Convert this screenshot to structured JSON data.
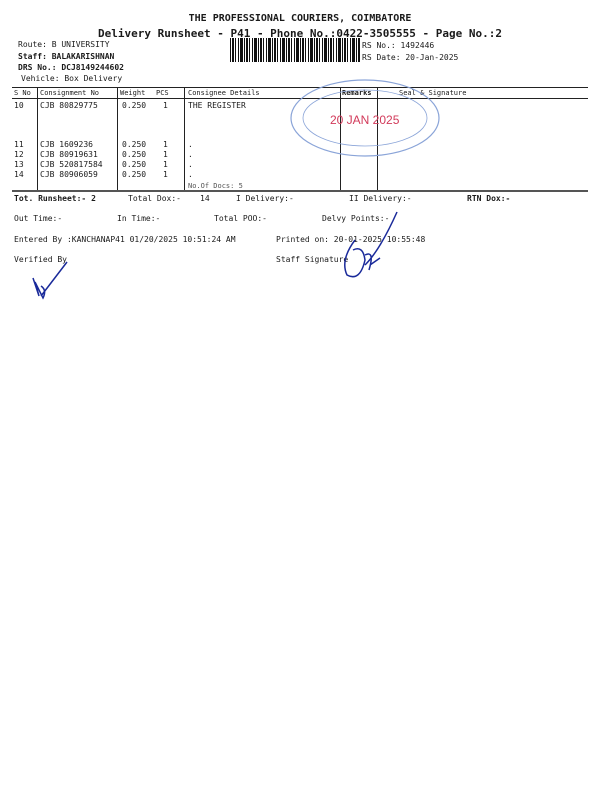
{
  "header": {
    "title": "THE PROFESSIONAL COURIERS, COIMBATORE",
    "subtitle": "Delivery Runsheet - P41 - Phone No.:0422-3505555 - Page No.:2",
    "route": "Route: B UNIVERSITY",
    "staff": "Staff: BALAKARISHNAN",
    "drs_no": "DRS No.: DCJ8149244602",
    "vehicle": "Vehicle: Box Delivery",
    "rs_no": "RS No.: 1492446",
    "rs_date": "RS Date: 20-Jan-2025"
  },
  "table": {
    "columns": [
      "S No",
      "Consignment No",
      "Weight",
      "PCS",
      "Consignee Details",
      "Remarks",
      "Seal & Signature"
    ],
    "rows": [
      {
        "sno": "10",
        "cons": "CJB 80829775",
        "weight": "0.250",
        "pcs": "1",
        "details": "THE REGISTER"
      },
      {
        "sno": "11",
        "cons": "CJB 1609236",
        "weight": "0.250",
        "pcs": "1",
        "details": "."
      },
      {
        "sno": "12",
        "cons": "CJB 80919631",
        "weight": "0.250",
        "pcs": "1",
        "details": "."
      },
      {
        "sno": "13",
        "cons": "CJB 520817584",
        "weight": "0.250",
        "pcs": "1",
        "details": "."
      },
      {
        "sno": "14",
        "cons": "CJB 80906059",
        "weight": "0.250",
        "pcs": "1",
        "details": "."
      }
    ],
    "docs": "No.Of Docs: 5"
  },
  "stamp": {
    "date": "20 JAN 2025",
    "color": "#5b7fc0",
    "date_color": "#d23a5a"
  },
  "footer": {
    "tot_runsheet": "Tot. Runsheet:- 2",
    "total_dox": "Total Dox:-",
    "total_dox_val": "14",
    "i_delivery": "I Delivery:-",
    "ii_delivery": "II Delivery:-",
    "rtn_dox": "RTN Dox:-",
    "out_time": "Out Time:-",
    "in_time": "In Time:-",
    "total_poo": "Total POO:-",
    "delvy_points": "Delvy Points:-",
    "entered_by": "Entered By :KANCHANAP41 01/20/2025 10:51:24 AM",
    "printed_on": "Printed on: 20-01-2025 10:55:48",
    "verified_by": "Verified By",
    "staff_signature": "Staff Signature"
  }
}
